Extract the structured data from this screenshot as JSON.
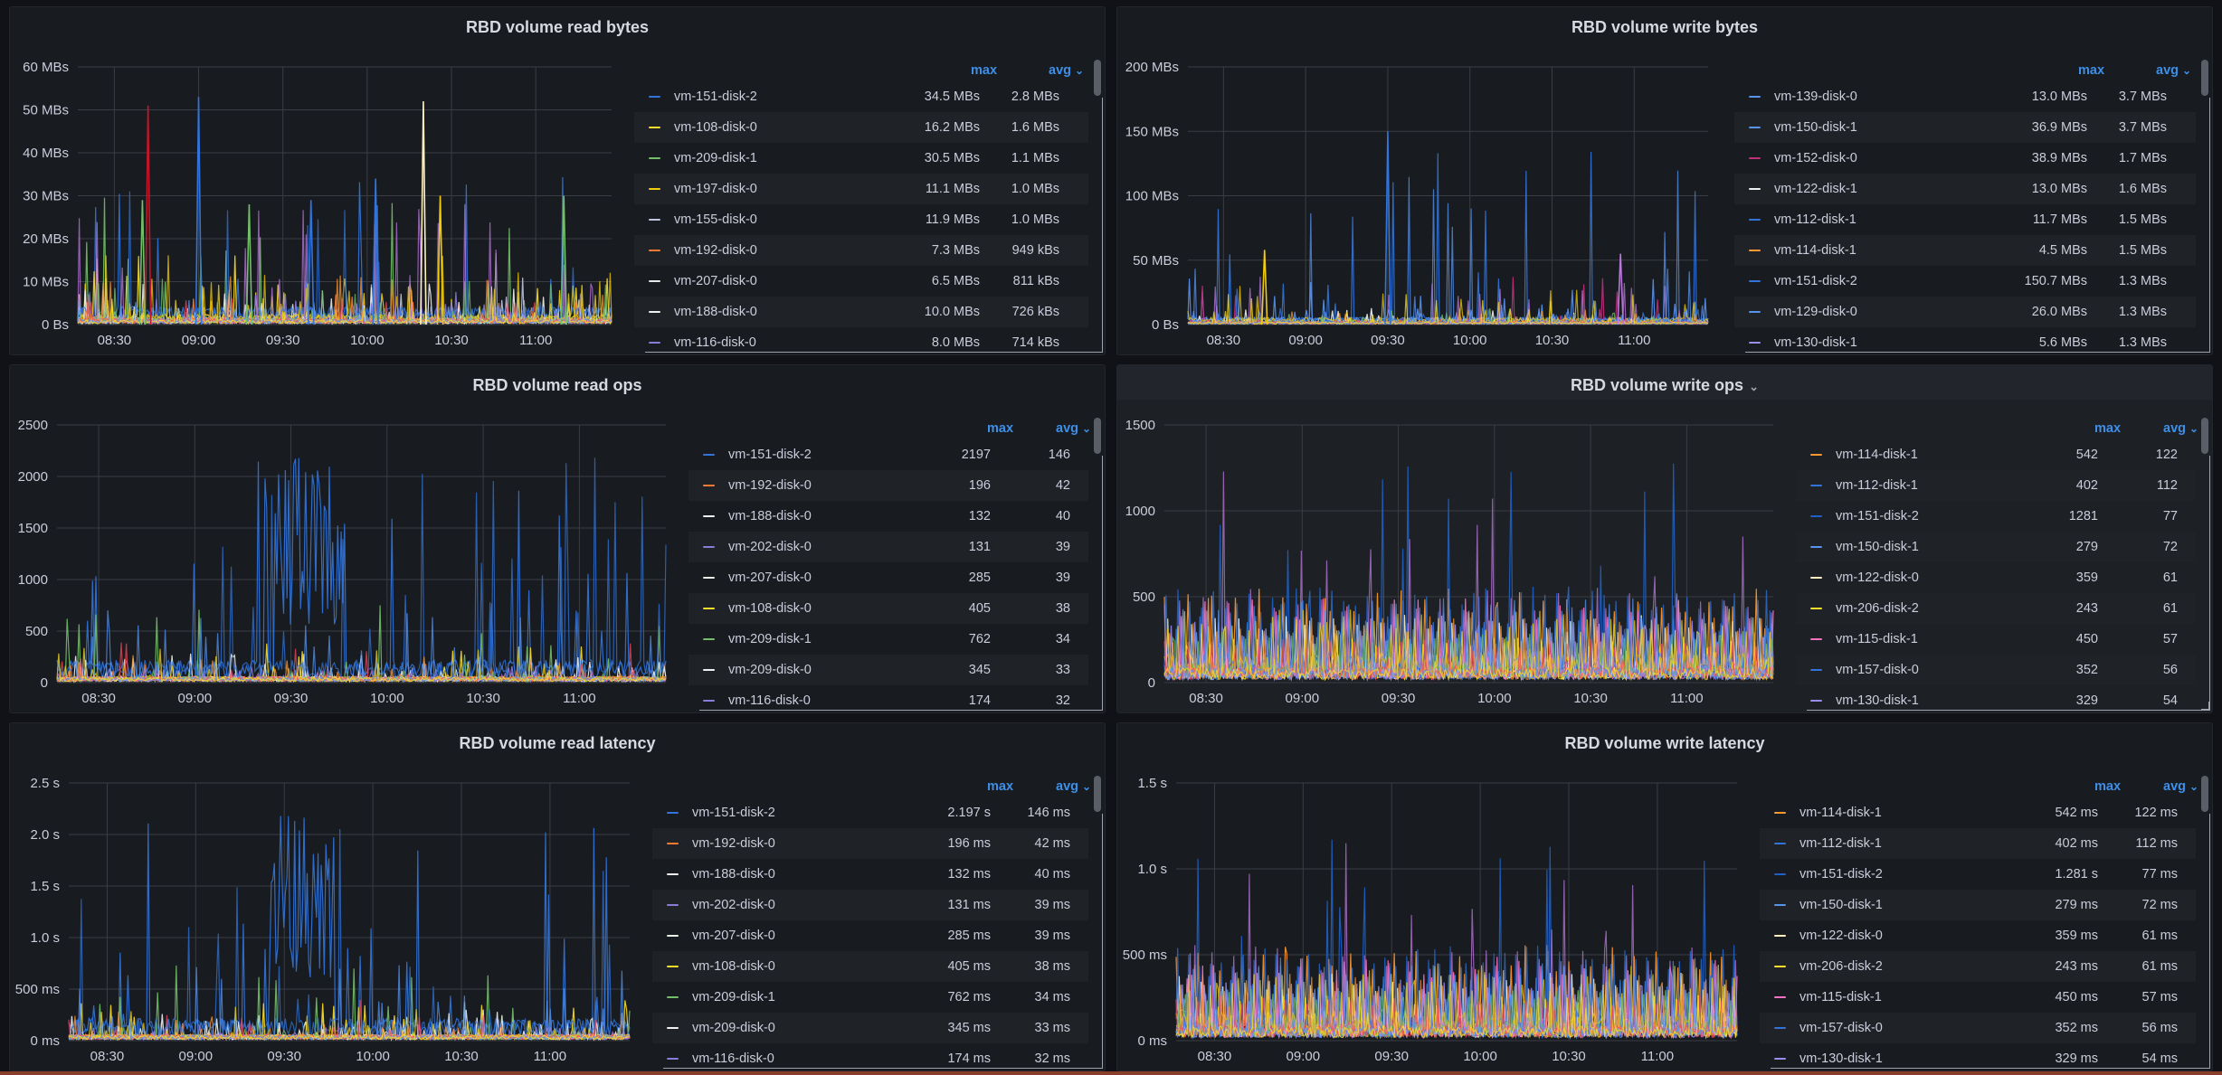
{
  "colors": {
    "background": "#111217",
    "panel": "#181b1f",
    "grid": "#3a3d45",
    "tick_text": "#ccccdc",
    "legend_header": "#3d8fe8",
    "palette": [
      "#3274d9",
      "#f2cc0c",
      "#b877d9",
      "#73bf69",
      "#ff9830",
      "#f2495c",
      "#5794f2",
      "#fade2a",
      "#8ab8ff",
      "#e0e0e0",
      "#96d98d",
      "#ffb357",
      "#ff7383",
      "#ca95e5",
      "#c4162a"
    ]
  },
  "legend_labels": {
    "max": "max",
    "avg": "avg"
  },
  "panels": [
    {
      "id": "read-bytes",
      "title": "RBD volume read bytes",
      "chart_data": {
        "type": "line",
        "title": "RBD volume read bytes",
        "x_ticks": [
          "08:30",
          "09:00",
          "09:30",
          "10:00",
          "10:30",
          "11:00"
        ],
        "y_ticks": [
          "0 Bs",
          "10 MBs",
          "20 MBs",
          "30 MBs",
          "40 MBs",
          "50 MBs",
          "60 MBs"
        ],
        "ylim": [
          0,
          60
        ],
        "y_unit": "MBs",
        "grid": true,
        "legend_placement": "right",
        "series": [
          {
            "name": "vm-151-disk-2",
            "max": "34.5 MBs",
            "avg": "2.8 MBs",
            "color": "#3274d9"
          },
          {
            "name": "vm-108-disk-0",
            "max": "16.2 MBs",
            "avg": "1.6 MBs",
            "color": "#fade2a"
          },
          {
            "name": "vm-209-disk-1",
            "max": "30.5 MBs",
            "avg": "1.1 MBs",
            "color": "#73bf69"
          },
          {
            "name": "vm-197-disk-0",
            "max": "11.1 MBs",
            "avg": "1.0 MBs",
            "color": "#f2cc0c"
          },
          {
            "name": "vm-155-disk-0",
            "max": "11.9 MBs",
            "avg": "1.0 MBs",
            "color": "#c0c4e0"
          },
          {
            "name": "vm-192-disk-0",
            "max": "7.3 MBs",
            "avg": "949 kBs",
            "color": "#ff7a30"
          },
          {
            "name": "vm-207-disk-0",
            "max": "6.5 MBs",
            "avg": "811 kBs",
            "color": "#e8e8e8"
          },
          {
            "name": "vm-188-disk-0",
            "max": "10.0 MBs",
            "avg": "726 kBs",
            "color": "#f0f0f0"
          },
          {
            "name": "vm-116-disk-0",
            "max": "8.0 MBs",
            "avg": "714 kBs",
            "color": "#8a7bd9"
          }
        ],
        "spikes": [
          {
            "x": "08:42",
            "y": 51,
            "color": "#c4162a"
          },
          {
            "x": "09:00",
            "y": 53,
            "color": "#3274d9"
          },
          {
            "x": "10:20",
            "y": 52,
            "color": "#fff2c0"
          },
          {
            "x": "10:03",
            "y": 34,
            "color": "#3274d9"
          },
          {
            "x": "11:10",
            "y": 30,
            "color": "#73bf69"
          },
          {
            "x": "08:40",
            "y": 29,
            "color": "#73bf69"
          },
          {
            "x": "09:18",
            "y": 28,
            "color": "#73bf69"
          },
          {
            "x": "10:26",
            "y": 30,
            "color": "#f2cc0c"
          },
          {
            "x": "09:40",
            "y": 29,
            "color": "#3274d9"
          }
        ]
      }
    },
    {
      "id": "write-bytes",
      "title": "RBD volume write bytes",
      "chart_data": {
        "type": "line",
        "title": "RBD volume write bytes",
        "x_ticks": [
          "08:30",
          "09:00",
          "09:30",
          "10:00",
          "10:30",
          "11:00"
        ],
        "y_ticks": [
          "0 Bs",
          "50 MBs",
          "100 MBs",
          "150 MBs",
          "200 MBs"
        ],
        "ylim": [
          0,
          200
        ],
        "y_unit": "MBs",
        "grid": true,
        "legend_placement": "right",
        "series": [
          {
            "name": "vm-139-disk-0",
            "max": "13.0 MBs",
            "avg": "3.7 MBs",
            "color": "#5794f2"
          },
          {
            "name": "vm-150-disk-1",
            "max": "36.9 MBs",
            "avg": "3.7 MBs",
            "color": "#5794f2"
          },
          {
            "name": "vm-152-disk-0",
            "max": "38.9 MBs",
            "avg": "1.7 MBs",
            "color": "#c0307a"
          },
          {
            "name": "vm-122-disk-1",
            "max": "13.0 MBs",
            "avg": "1.6 MBs",
            "color": "#f0f0f0"
          },
          {
            "name": "vm-112-disk-1",
            "max": "11.7 MBs",
            "avg": "1.5 MBs",
            "color": "#3274d9"
          },
          {
            "name": "vm-114-disk-1",
            "max": "4.5 MBs",
            "avg": "1.5 MBs",
            "color": "#ff9830"
          },
          {
            "name": "vm-151-disk-2",
            "max": "150.7 MBs",
            "avg": "1.3 MBs",
            "color": "#3274d9"
          },
          {
            "name": "vm-129-disk-0",
            "max": "26.0 MBs",
            "avg": "1.3 MBs",
            "color": "#5794f2"
          },
          {
            "name": "vm-130-disk-1",
            "max": "5.6 MBs",
            "avg": "1.3 MBs",
            "color": "#9a8cf0"
          }
        ],
        "spikes": [
          {
            "x": "09:30",
            "y": 150,
            "color": "#3274d9"
          },
          {
            "x": "08:45",
            "y": 58,
            "color": "#f2cc0c"
          },
          {
            "x": "10:55",
            "y": 55,
            "color": "#b877d9"
          }
        ]
      }
    },
    {
      "id": "read-ops",
      "title": "RBD volume read ops",
      "chart_data": {
        "type": "line",
        "title": "RBD volume read ops",
        "x_ticks": [
          "08:30",
          "09:00",
          "09:30",
          "10:00",
          "10:30",
          "11:00"
        ],
        "y_ticks": [
          "0",
          "500",
          "1000",
          "1500",
          "2000",
          "2500"
        ],
        "ylim": [
          0,
          2500
        ],
        "grid": true,
        "legend_placement": "right",
        "series": [
          {
            "name": "vm-151-disk-2",
            "max": "2197",
            "avg": "146",
            "color": "#3274d9"
          },
          {
            "name": "vm-192-disk-0",
            "max": "196",
            "avg": "42",
            "color": "#ff7a30"
          },
          {
            "name": "vm-188-disk-0",
            "max": "132",
            "avg": "40",
            "color": "#f0f0f0"
          },
          {
            "name": "vm-202-disk-0",
            "max": "131",
            "avg": "39",
            "color": "#8a7bd9"
          },
          {
            "name": "vm-207-disk-0",
            "max": "285",
            "avg": "39",
            "color": "#e8f0e8"
          },
          {
            "name": "vm-108-disk-0",
            "max": "405",
            "avg": "38",
            "color": "#fade2a"
          },
          {
            "name": "vm-209-disk-1",
            "max": "762",
            "avg": "34",
            "color": "#73bf69"
          },
          {
            "name": "vm-209-disk-0",
            "max": "345",
            "avg": "33",
            "color": "#f0f0f0"
          },
          {
            "name": "vm-116-disk-0",
            "max": "174",
            "avg": "32",
            "color": "#8a7bd9"
          }
        ]
      }
    },
    {
      "id": "write-ops",
      "title": "RBD volume write ops",
      "chart_data": {
        "type": "line",
        "title": "RBD volume write ops",
        "x_ticks": [
          "08:30",
          "09:00",
          "09:30",
          "10:00",
          "10:30",
          "11:00"
        ],
        "y_ticks": [
          "0",
          "500",
          "1000",
          "1500"
        ],
        "ylim": [
          0,
          1500
        ],
        "grid": true,
        "legend_placement": "right",
        "series": [
          {
            "name": "vm-114-disk-1",
            "max": "542",
            "avg": "122",
            "color": "#ff9830"
          },
          {
            "name": "vm-112-disk-1",
            "max": "402",
            "avg": "112",
            "color": "#3274d9"
          },
          {
            "name": "vm-151-disk-2",
            "max": "1281",
            "avg": "77",
            "color": "#1f60c4"
          },
          {
            "name": "vm-150-disk-1",
            "max": "279",
            "avg": "72",
            "color": "#5794f2"
          },
          {
            "name": "vm-122-disk-0",
            "max": "359",
            "avg": "61",
            "color": "#fff2c0"
          },
          {
            "name": "vm-206-disk-2",
            "max": "243",
            "avg": "61",
            "color": "#fade2a"
          },
          {
            "name": "vm-115-disk-1",
            "max": "450",
            "avg": "57",
            "color": "#ff70c0"
          },
          {
            "name": "vm-157-disk-0",
            "max": "352",
            "avg": "56",
            "color": "#3274d9"
          },
          {
            "name": "vm-130-disk-1",
            "max": "329",
            "avg": "54",
            "color": "#9a8cf0"
          }
        ]
      }
    },
    {
      "id": "read-latency",
      "title": "RBD volume read latency",
      "chart_data": {
        "type": "line",
        "title": "RBD volume read latency",
        "x_ticks": [
          "08:30",
          "09:00",
          "09:30",
          "10:00",
          "10:30",
          "11:00"
        ],
        "y_ticks": [
          "0 ms",
          "500 ms",
          "1.0 s",
          "1.5 s",
          "2.0 s",
          "2.5 s"
        ],
        "ylim": [
          0,
          2.5
        ],
        "y_unit": "s",
        "grid": true,
        "legend_placement": "right",
        "series": [
          {
            "name": "vm-151-disk-2",
            "max": "2.197 s",
            "avg": "146 ms",
            "color": "#3274d9"
          },
          {
            "name": "vm-192-disk-0",
            "max": "196 ms",
            "avg": "42 ms",
            "color": "#ff7a30"
          },
          {
            "name": "vm-188-disk-0",
            "max": "132 ms",
            "avg": "40 ms",
            "color": "#f0f0f0"
          },
          {
            "name": "vm-202-disk-0",
            "max": "131 ms",
            "avg": "39 ms",
            "color": "#8a7bd9"
          },
          {
            "name": "vm-207-disk-0",
            "max": "285 ms",
            "avg": "39 ms",
            "color": "#e8f0e8"
          },
          {
            "name": "vm-108-disk-0",
            "max": "405 ms",
            "avg": "38 ms",
            "color": "#fade2a"
          },
          {
            "name": "vm-209-disk-1",
            "max": "762 ms",
            "avg": "34 ms",
            "color": "#73bf69"
          },
          {
            "name": "vm-209-disk-0",
            "max": "345 ms",
            "avg": "33 ms",
            "color": "#f0f0f0"
          },
          {
            "name": "vm-116-disk-0",
            "max": "174 ms",
            "avg": "32 ms",
            "color": "#8a7bd9"
          }
        ]
      }
    },
    {
      "id": "write-latency",
      "title": "RBD volume write latency",
      "chart_data": {
        "type": "line",
        "title": "RBD volume write latency",
        "x_ticks": [
          "08:30",
          "09:00",
          "09:30",
          "10:00",
          "10:30",
          "11:00"
        ],
        "y_ticks": [
          "0 ms",
          "500 ms",
          "1.0 s",
          "1.5 s"
        ],
        "ylim": [
          0,
          1.5
        ],
        "y_unit": "s",
        "grid": true,
        "legend_placement": "right",
        "series": [
          {
            "name": "vm-114-disk-1",
            "max": "542 ms",
            "avg": "122 ms",
            "color": "#ff9830"
          },
          {
            "name": "vm-112-disk-1",
            "max": "402 ms",
            "avg": "112 ms",
            "color": "#3274d9"
          },
          {
            "name": "vm-151-disk-2",
            "max": "1.281 s",
            "avg": "77 ms",
            "color": "#1f60c4"
          },
          {
            "name": "vm-150-disk-1",
            "max": "279 ms",
            "avg": "72 ms",
            "color": "#5794f2"
          },
          {
            "name": "vm-122-disk-0",
            "max": "359 ms",
            "avg": "61 ms",
            "color": "#fff2c0"
          },
          {
            "name": "vm-206-disk-2",
            "max": "243 ms",
            "avg": "61 ms",
            "color": "#fade2a"
          },
          {
            "name": "vm-115-disk-1",
            "max": "450 ms",
            "avg": "57 ms",
            "color": "#ff70c0"
          },
          {
            "name": "vm-157-disk-0",
            "max": "352 ms",
            "avg": "56 ms",
            "color": "#3274d9"
          },
          {
            "name": "vm-130-disk-1",
            "max": "329 ms",
            "avg": "54 ms",
            "color": "#9a8cf0"
          }
        ]
      }
    }
  ]
}
